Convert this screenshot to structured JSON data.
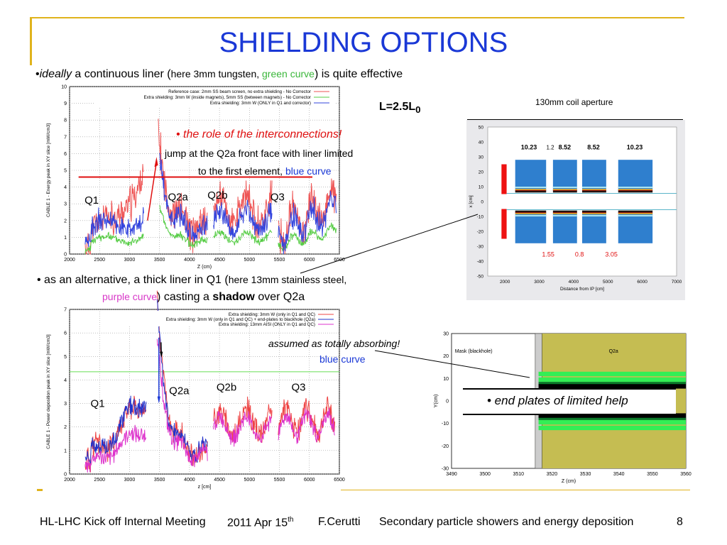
{
  "slide": {
    "title": "SHIELDING OPTIONS",
    "bullet1": {
      "bullet": "•",
      "ideally": "ideally",
      "text1": " a continuous liner (",
      "small1": "here 3mm tungsten, ",
      "green": "green curve",
      "text2": ") is quite effective"
    },
    "L_label": "L=2.5L",
    "L_sub": "0",
    "coil_label": "130mm coil aperture",
    "role_text": "• the role of the interconnections!",
    "jump_line1": "jump at the Q2a front face with liner limited",
    "jump_line2a": "to the first element, ",
    "jump_line2b": "blue curve",
    "bullet2": {
      "line1a": "• as an alternative, a thick liner in Q1 (",
      "line1b": "here 13mm stainless steel,",
      "line2a": "purple curve",
      "line2b": ") casting a ",
      "line2c": "shadow",
      "line2d": " over Q2a"
    },
    "assumed_text": "assumed as totally absorbing!",
    "assumed_blue": "blue curve",
    "end_plates": "• end plates of limited help",
    "colors": {
      "title": "#1a38d6",
      "rule": "#e0b31c",
      "green": "#3bb73b",
      "purple": "#d838c8",
      "red": "#e01010"
    }
  },
  "plot1": {
    "ylabel": "CABLE 1 - Energy peak in XY slice [mW/cm3]",
    "xlabel": "Z (cm)",
    "x_ticks": [
      "2000",
      "2500",
      "3000",
      "3500",
      "4000",
      "4500",
      "5000",
      "5500",
      "6000",
      "6500"
    ],
    "y_ticks": [
      "0",
      "1",
      "2",
      "3",
      "4",
      "5",
      "6",
      "7",
      "8",
      "9",
      "10"
    ],
    "legend": [
      "Reference case: 2mm SS beam screen, no extra shielding - No Corrector",
      "Extra shielding: 3mm W (inside magnets), 5mm SS (between magnets) - No Corrector",
      "Extra shielding: 3mm W (ONLY in Q1 and corrector)"
    ],
    "labels": [
      "Q1",
      "Q2a",
      "Q2b",
      "Q3"
    ]
  },
  "plot2": {
    "ylabel": "CABLE 1 - Power deposition peak in XY slice [mW/cm3]",
    "xlabel": "z [cm]",
    "x_ticks": [
      "2000",
      "2500",
      "3000",
      "3500",
      "4000",
      "4500",
      "5000",
      "5500",
      "6000",
      "6500"
    ],
    "y_ticks": [
      "0",
      "1",
      "2",
      "3",
      "4",
      "5",
      "6",
      "7"
    ],
    "legend": [
      "Extra shielding: 3mm W (only in Q1 and QC)",
      "Extra shielding: 3mm W (only in Q1 and QC) + end-plates to blackhole (Q2a)",
      "Extra shielding: 13mm AISI (ONLY in Q1 and QC)"
    ],
    "labels": [
      "Q1",
      "Q2a",
      "Q2b",
      "Q3"
    ]
  },
  "geom": {
    "ylabel": "x [cm]",
    "xlabel": "Distance from IP [cm]",
    "x_ticks": [
      "2000",
      "3000",
      "4000",
      "5000",
      "6000",
      "7000"
    ],
    "y_ticks": [
      "50",
      "40",
      "30",
      "20",
      "10",
      "0",
      "-10",
      "-20",
      "-30",
      "-40",
      "-50"
    ],
    "top_labels": [
      "10.23",
      "1.2",
      "8.52",
      "8.52",
      "10.23"
    ],
    "bottom_labels": [
      "1.55",
      "0.8",
      "3.05"
    ]
  },
  "zoom": {
    "ylabel": "Y(cm)",
    "xlabel": "Z (cm)",
    "x_ticks": [
      "3490",
      "3500",
      "3510",
      "3520",
      "3530",
      "3540",
      "3550",
      "3560"
    ],
    "y_ticks": [
      "30",
      "20",
      "10",
      "0",
      "-10",
      "-20",
      "-30"
    ],
    "mask_label": "Mask (blackhole)",
    "q2a_label": "Q2a"
  },
  "footer": {
    "meeting": "HL-LHC Kick off Internal Meeting",
    "date": "2011 Apr 15",
    "date_sup": "th",
    "author": "F.Cerutti",
    "topic": "Secondary particle showers and energy deposition",
    "page": "8"
  }
}
